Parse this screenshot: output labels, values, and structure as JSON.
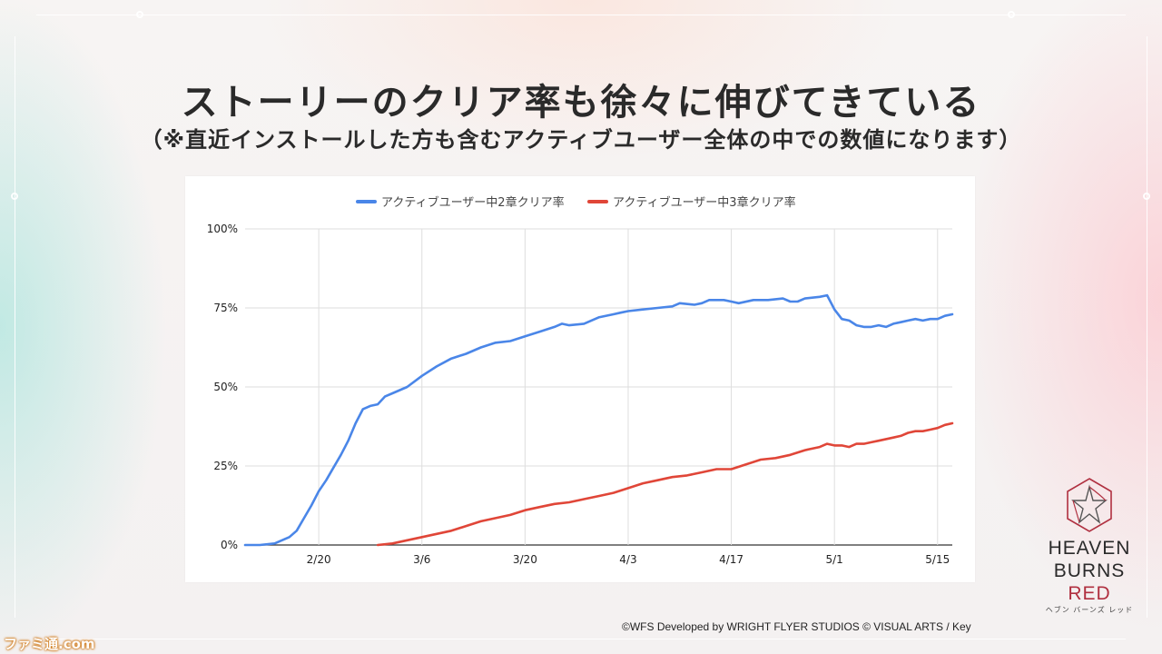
{
  "slide": {
    "title": "ストーリーのクリア率も徐々に伸びてきている",
    "subtitle": "（※直近インストールした方も含むアクティブユーザー全体の中での数値になります）",
    "copyright": "©WFS Developed by WRIGHT FLYER STUDIOS © VISUAL ARTS / Key",
    "logo": {
      "line1": "HEAVEN",
      "line2": "BURNS",
      "line3": "RED",
      "kana": "ヘブン バーンズ レッド"
    },
    "watermark": "ファミ通.com"
  },
  "colors": {
    "series2": "#4a86e8",
    "series3": "#e04638",
    "grid": "#dedede",
    "logo_red": "#b03040"
  },
  "chart_data": {
    "type": "line",
    "title": "",
    "xlabel": "",
    "ylabel": "",
    "ylim": [
      0,
      100
    ],
    "y_ticks": [
      {
        "value": 0,
        "label": "0%"
      },
      {
        "value": 25,
        "label": "25%"
      },
      {
        "value": 50,
        "label": "50%"
      },
      {
        "value": 75,
        "label": "75%"
      },
      {
        "value": 100,
        "label": "100%"
      }
    ],
    "x_range": [
      "2022-02-10",
      "2022-05-17"
    ],
    "x_ticks": [
      {
        "date": "2022-02-20",
        "label": "2/20"
      },
      {
        "date": "2022-03-06",
        "label": "3/6"
      },
      {
        "date": "2022-03-20",
        "label": "3/20"
      },
      {
        "date": "2022-04-03",
        "label": "4/3"
      },
      {
        "date": "2022-04-17",
        "label": "4/17"
      },
      {
        "date": "2022-05-01",
        "label": "5/1"
      },
      {
        "date": "2022-05-15",
        "label": "5/15"
      }
    ],
    "grid": true,
    "legend_position": "top",
    "series": [
      {
        "name": "アクティブユーザー中2章クリア率",
        "color": "#4a86e8",
        "points": [
          [
            "2022-02-10",
            0
          ],
          [
            "2022-02-12",
            0
          ],
          [
            "2022-02-14",
            0.5
          ],
          [
            "2022-02-15",
            1.5
          ],
          [
            "2022-02-16",
            2.5
          ],
          [
            "2022-02-17",
            4.5
          ],
          [
            "2022-02-18",
            8.5
          ],
          [
            "2022-02-19",
            12.5
          ],
          [
            "2022-02-20",
            17
          ],
          [
            "2022-02-21",
            20.5
          ],
          [
            "2022-02-22",
            24.5
          ],
          [
            "2022-02-23",
            28.5
          ],
          [
            "2022-02-24",
            33
          ],
          [
            "2022-02-25",
            38.5
          ],
          [
            "2022-02-26",
            43
          ],
          [
            "2022-02-27",
            44
          ],
          [
            "2022-02-28",
            44.5
          ],
          [
            "2022-03-01",
            47
          ],
          [
            "2022-03-02",
            48
          ],
          [
            "2022-03-04",
            50
          ],
          [
            "2022-03-06",
            53.5
          ],
          [
            "2022-03-08",
            56.5
          ],
          [
            "2022-03-10",
            59
          ],
          [
            "2022-03-12",
            60.5
          ],
          [
            "2022-03-14",
            62.5
          ],
          [
            "2022-03-16",
            64
          ],
          [
            "2022-03-18",
            64.5
          ],
          [
            "2022-03-20",
            66
          ],
          [
            "2022-03-22",
            67.5
          ],
          [
            "2022-03-24",
            69
          ],
          [
            "2022-03-25",
            70
          ],
          [
            "2022-03-26",
            69.5
          ],
          [
            "2022-03-28",
            70
          ],
          [
            "2022-03-30",
            72
          ],
          [
            "2022-04-01",
            73
          ],
          [
            "2022-04-02",
            73.5
          ],
          [
            "2022-04-03",
            74
          ],
          [
            "2022-04-05",
            74.5
          ],
          [
            "2022-04-07",
            75
          ],
          [
            "2022-04-09",
            75.5
          ],
          [
            "2022-04-10",
            76.5
          ],
          [
            "2022-04-12",
            76
          ],
          [
            "2022-04-13",
            76.5
          ],
          [
            "2022-04-14",
            77.5
          ],
          [
            "2022-04-16",
            77.5
          ],
          [
            "2022-04-17",
            77
          ],
          [
            "2022-04-18",
            76.5
          ],
          [
            "2022-04-20",
            77.5
          ],
          [
            "2022-04-22",
            77.5
          ],
          [
            "2022-04-24",
            78
          ],
          [
            "2022-04-25",
            77
          ],
          [
            "2022-04-26",
            77
          ],
          [
            "2022-04-27",
            78
          ],
          [
            "2022-04-29",
            78.5
          ],
          [
            "2022-04-30",
            79
          ],
          [
            "2022-05-01",
            74.5
          ],
          [
            "2022-05-02",
            71.5
          ],
          [
            "2022-05-03",
            71
          ],
          [
            "2022-05-04",
            69.5
          ],
          [
            "2022-05-05",
            69
          ],
          [
            "2022-05-06",
            69
          ],
          [
            "2022-05-07",
            69.5
          ],
          [
            "2022-05-08",
            69
          ],
          [
            "2022-05-09",
            70
          ],
          [
            "2022-05-10",
            70.5
          ],
          [
            "2022-05-11",
            71
          ],
          [
            "2022-05-12",
            71.5
          ],
          [
            "2022-05-13",
            71
          ],
          [
            "2022-05-14",
            71.5
          ],
          [
            "2022-05-15",
            71.5
          ],
          [
            "2022-05-16",
            72.5
          ],
          [
            "2022-05-17",
            73
          ]
        ]
      },
      {
        "name": "アクティブユーザー中3章クリア率",
        "color": "#e04638",
        "points": [
          [
            "2022-02-28",
            0
          ],
          [
            "2022-03-02",
            0.5
          ],
          [
            "2022-03-04",
            1.5
          ],
          [
            "2022-03-06",
            2.5
          ],
          [
            "2022-03-08",
            3.5
          ],
          [
            "2022-03-10",
            4.5
          ],
          [
            "2022-03-12",
            6
          ],
          [
            "2022-03-14",
            7.5
          ],
          [
            "2022-03-16",
            8.5
          ],
          [
            "2022-03-18",
            9.5
          ],
          [
            "2022-03-20",
            11
          ],
          [
            "2022-03-22",
            12
          ],
          [
            "2022-03-24",
            13
          ],
          [
            "2022-03-26",
            13.5
          ],
          [
            "2022-03-28",
            14.5
          ],
          [
            "2022-03-30",
            15.5
          ],
          [
            "2022-04-01",
            16.5
          ],
          [
            "2022-04-03",
            18
          ],
          [
            "2022-04-05",
            19.5
          ],
          [
            "2022-04-07",
            20.5
          ],
          [
            "2022-04-09",
            21.5
          ],
          [
            "2022-04-11",
            22
          ],
          [
            "2022-04-13",
            23
          ],
          [
            "2022-04-15",
            24
          ],
          [
            "2022-04-17",
            24
          ],
          [
            "2022-04-19",
            25.5
          ],
          [
            "2022-04-21",
            27
          ],
          [
            "2022-04-23",
            27.5
          ],
          [
            "2022-04-25",
            28.5
          ],
          [
            "2022-04-27",
            30
          ],
          [
            "2022-04-29",
            31
          ],
          [
            "2022-04-30",
            32
          ],
          [
            "2022-05-01",
            31.5
          ],
          [
            "2022-05-02",
            31.5
          ],
          [
            "2022-05-03",
            31
          ],
          [
            "2022-05-04",
            32
          ],
          [
            "2022-05-05",
            32
          ],
          [
            "2022-05-06",
            32.5
          ],
          [
            "2022-05-07",
            33
          ],
          [
            "2022-05-09",
            34
          ],
          [
            "2022-05-10",
            34.5
          ],
          [
            "2022-05-11",
            35.5
          ],
          [
            "2022-05-12",
            36
          ],
          [
            "2022-05-13",
            36
          ],
          [
            "2022-05-14",
            36.5
          ],
          [
            "2022-05-15",
            37
          ],
          [
            "2022-05-16",
            38
          ],
          [
            "2022-05-17",
            38.5
          ]
        ]
      }
    ]
  }
}
